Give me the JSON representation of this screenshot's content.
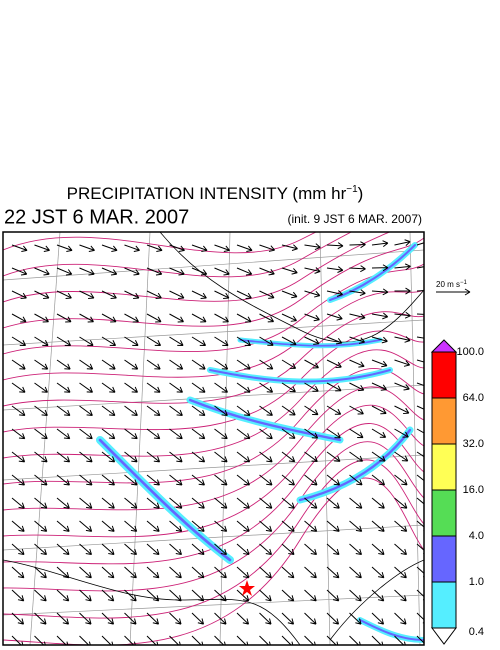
{
  "header": {
    "title": {
      "text": "PRECIPITATION INTENSITY (mm hr",
      "sup": "−1",
      "end": ")"
    },
    "valid_time": "22 JST 6 MAR. 2007",
    "init_time": "(init. 9 JST 6 MAR. 2007)"
  },
  "wind_scale": {
    "text": "20 m s",
    "sup": "−1"
  },
  "colorbar": {
    "labels": [
      "100.0",
      "64.0",
      "32.0",
      "16.0",
      "4.0",
      "1.0",
      "0.4"
    ],
    "colors": [
      "#cc33ff",
      "#ff0000",
      "#ff9933",
      "#ffff55",
      "#55dd55",
      "#6666ff",
      "#55eeff",
      "#ffffff"
    ]
  }
}
